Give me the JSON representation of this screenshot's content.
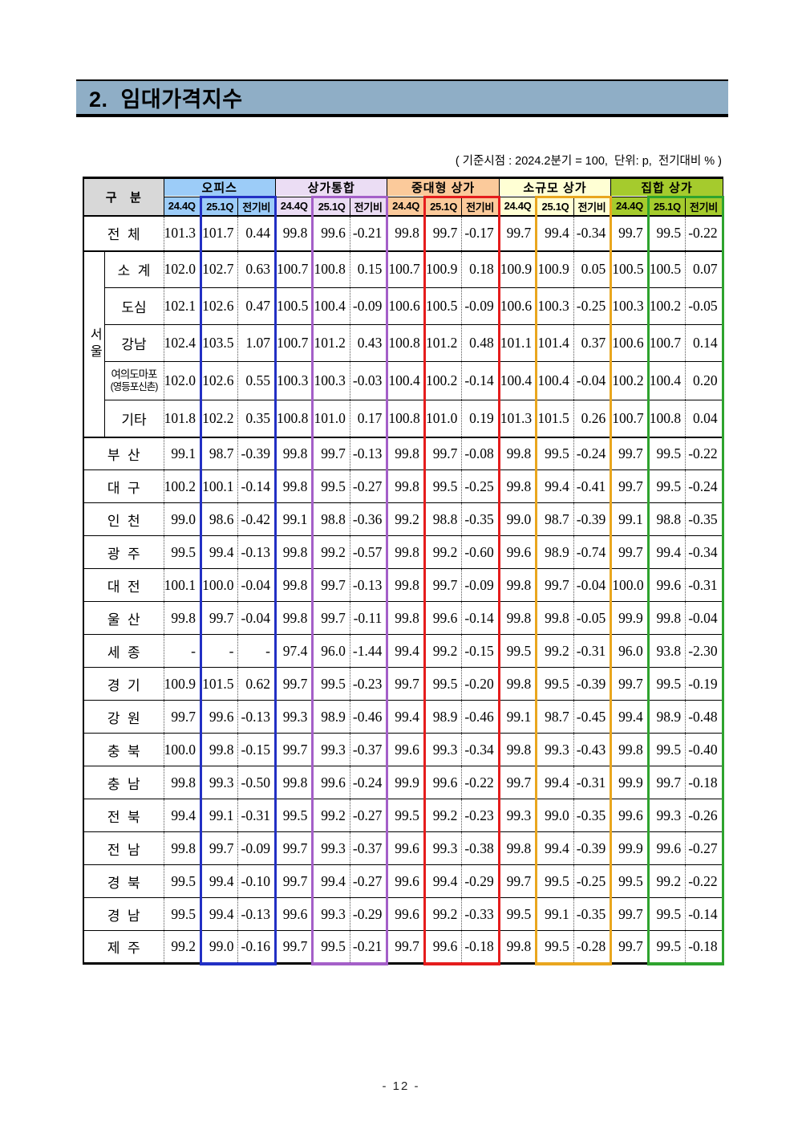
{
  "page": {
    "title": "2.  임대가격지수",
    "note": "( 기준시점 : 2024.2분기 = 100,  단위: p,  전기대비 % )",
    "page_number": "- 12 -"
  },
  "table": {
    "corner_label": "구   분",
    "seoul_label": "서울",
    "sub_headers": [
      "24.4Q",
      "25.1Q",
      "전기비"
    ],
    "groups": [
      {
        "label": "오피스",
        "bg": "#9CCCF8",
        "box": "#2230C4"
      },
      {
        "label": "상가통합",
        "bg": "#EBDDF4",
        "box": "#A45FC8"
      },
      {
        "label": "중대형 상가",
        "bg": "#FBCA9B",
        "box": "#E51C1C"
      },
      {
        "label": "소규모 상가",
        "bg": "#FFFFD4",
        "box": "#E9A61E"
      },
      {
        "label": "집합 상가",
        "bg": "#A5CB2D",
        "box": "#2EA32E"
      }
    ],
    "rows": [
      {
        "label": "전  체",
        "type": "total",
        "values": [
          "101.3",
          "101.7",
          "0.44",
          "99.8",
          "99.6",
          "-0.21",
          "99.8",
          "99.7",
          "-0.17",
          "99.7",
          "99.4",
          "-0.34",
          "99.7",
          "99.5",
          "-0.22"
        ]
      },
      {
        "label": "소  계",
        "section": "seoul",
        "values": [
          "102.0",
          "102.7",
          "0.63",
          "100.7",
          "100.8",
          "0.15",
          "100.7",
          "100.9",
          "0.18",
          "100.9",
          "100.9",
          "0.05",
          "100.5",
          "100.5",
          "0.07"
        ]
      },
      {
        "label": "도심",
        "section": "seoul",
        "values": [
          "102.1",
          "102.6",
          "0.47",
          "100.5",
          "100.4",
          "-0.09",
          "100.6",
          "100.5",
          "-0.09",
          "100.6",
          "100.3",
          "-0.25",
          "100.3",
          "100.2",
          "-0.05"
        ]
      },
      {
        "label": "강남",
        "section": "seoul",
        "values": [
          "102.4",
          "103.5",
          "1.07",
          "100.7",
          "101.2",
          "0.43",
          "100.8",
          "101.2",
          "0.48",
          "101.1",
          "101.4",
          "0.37",
          "100.6",
          "100.7",
          "0.14"
        ]
      },
      {
        "label": "여의도마포",
        "label_line2": "(영등포신촌)",
        "section": "seoul",
        "values": [
          "102.0",
          "102.6",
          "0.55",
          "100.3",
          "100.3",
          "-0.03",
          "100.4",
          "100.2",
          "-0.14",
          "100.4",
          "100.4",
          "-0.04",
          "100.2",
          "100.4",
          "0.20"
        ]
      },
      {
        "label": "기타",
        "section": "seoul",
        "values": [
          "101.8",
          "102.2",
          "0.35",
          "100.8",
          "101.0",
          "0.17",
          "100.8",
          "101.0",
          "0.19",
          "101.3",
          "101.5",
          "0.26",
          "100.7",
          "100.8",
          "0.04"
        ]
      },
      {
        "label": "부  산",
        "values": [
          "99.1",
          "98.7",
          "-0.39",
          "99.8",
          "99.7",
          "-0.13",
          "99.8",
          "99.7",
          "-0.08",
          "99.8",
          "99.5",
          "-0.24",
          "99.7",
          "99.5",
          "-0.22"
        ]
      },
      {
        "label": "대  구",
        "values": [
          "100.2",
          "100.1",
          "-0.14",
          "99.8",
          "99.5",
          "-0.27",
          "99.8",
          "99.5",
          "-0.25",
          "99.8",
          "99.4",
          "-0.41",
          "99.7",
          "99.5",
          "-0.24"
        ]
      },
      {
        "label": "인  천",
        "values": [
          "99.0",
          "98.6",
          "-0.42",
          "99.1",
          "98.8",
          "-0.36",
          "99.2",
          "98.8",
          "-0.35",
          "99.0",
          "98.7",
          "-0.39",
          "99.1",
          "98.8",
          "-0.35"
        ]
      },
      {
        "label": "광  주",
        "values": [
          "99.5",
          "99.4",
          "-0.13",
          "99.8",
          "99.2",
          "-0.57",
          "99.8",
          "99.2",
          "-0.60",
          "99.6",
          "98.9",
          "-0.74",
          "99.7",
          "99.4",
          "-0.34"
        ]
      },
      {
        "label": "대  전",
        "values": [
          "100.1",
          "100.0",
          "-0.04",
          "99.8",
          "99.7",
          "-0.13",
          "99.8",
          "99.7",
          "-0.09",
          "99.8",
          "99.7",
          "-0.04",
          "100.0",
          "99.6",
          "-0.31"
        ]
      },
      {
        "label": "울  산",
        "values": [
          "99.8",
          "99.7",
          "-0.04",
          "99.8",
          "99.7",
          "-0.11",
          "99.8",
          "99.6",
          "-0.14",
          "99.8",
          "99.8",
          "-0.05",
          "99.9",
          "99.8",
          "-0.04"
        ]
      },
      {
        "label": "세  종",
        "values": [
          "-",
          "-",
          "-",
          "97.4",
          "96.0",
          "-1.44",
          "99.4",
          "99.2",
          "-0.15",
          "99.5",
          "99.2",
          "-0.31",
          "96.0",
          "93.8",
          "-2.30"
        ]
      },
      {
        "label": "경  기",
        "values": [
          "100.9",
          "101.5",
          "0.62",
          "99.7",
          "99.5",
          "-0.23",
          "99.7",
          "99.5",
          "-0.20",
          "99.8",
          "99.5",
          "-0.39",
          "99.7",
          "99.5",
          "-0.19"
        ]
      },
      {
        "label": "강  원",
        "values": [
          "99.7",
          "99.6",
          "-0.13",
          "99.3",
          "98.9",
          "-0.46",
          "99.4",
          "98.9",
          "-0.46",
          "99.1",
          "98.7",
          "-0.45",
          "99.4",
          "98.9",
          "-0.48"
        ]
      },
      {
        "label": "충  북",
        "values": [
          "100.0",
          "99.8",
          "-0.15",
          "99.7",
          "99.3",
          "-0.37",
          "99.6",
          "99.3",
          "-0.34",
          "99.8",
          "99.3",
          "-0.43",
          "99.8",
          "99.5",
          "-0.40"
        ]
      },
      {
        "label": "충  남",
        "values": [
          "99.8",
          "99.3",
          "-0.50",
          "99.8",
          "99.6",
          "-0.24",
          "99.9",
          "99.6",
          "-0.22",
          "99.7",
          "99.4",
          "-0.31",
          "99.9",
          "99.7",
          "-0.18"
        ]
      },
      {
        "label": "전  북",
        "values": [
          "99.4",
          "99.1",
          "-0.31",
          "99.5",
          "99.2",
          "-0.27",
          "99.5",
          "99.2",
          "-0.23",
          "99.3",
          "99.0",
          "-0.35",
          "99.6",
          "99.3",
          "-0.26"
        ]
      },
      {
        "label": "전  남",
        "values": [
          "99.8",
          "99.7",
          "-0.09",
          "99.7",
          "99.3",
          "-0.37",
          "99.6",
          "99.3",
          "-0.38",
          "99.8",
          "99.4",
          "-0.39",
          "99.9",
          "99.6",
          "-0.27"
        ]
      },
      {
        "label": "경  북",
        "values": [
          "99.5",
          "99.4",
          "-0.10",
          "99.7",
          "99.4",
          "-0.27",
          "99.6",
          "99.4",
          "-0.29",
          "99.7",
          "99.5",
          "-0.25",
          "99.5",
          "99.2",
          "-0.22"
        ]
      },
      {
        "label": "경  남",
        "values": [
          "99.5",
          "99.4",
          "-0.13",
          "99.6",
          "99.3",
          "-0.29",
          "99.6",
          "99.2",
          "-0.33",
          "99.5",
          "99.1",
          "-0.35",
          "99.7",
          "99.5",
          "-0.14"
        ]
      },
      {
        "label": "제  주",
        "values": [
          "99.2",
          "99.0",
          "-0.16",
          "99.7",
          "99.5",
          "-0.21",
          "99.7",
          "99.6",
          "-0.18",
          "99.8",
          "99.5",
          "-0.28",
          "99.7",
          "99.5",
          "-0.18"
        ]
      }
    ]
  }
}
